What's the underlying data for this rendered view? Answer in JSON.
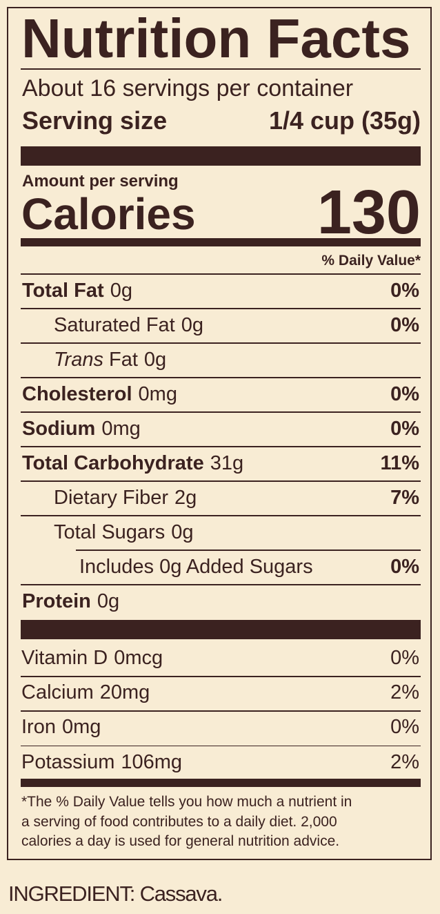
{
  "label": {
    "title": "Nutrition Facts",
    "servings": "About 16 servings per container",
    "serving_size": {
      "label": "Serving size",
      "value": "1/4 cup (35g)"
    },
    "amount_per_serving": "Amount per serving",
    "calories": {
      "label": "Calories",
      "value": "130"
    },
    "daily_value_header": "% Daily Value*",
    "nutrients": [
      {
        "name": "Total Fat",
        "amount": "0g",
        "dv": "0%"
      },
      {
        "name": "Saturated Fat",
        "amount": "0g",
        "dv": "0%"
      },
      {
        "name_italic": "Trans",
        "name": "Fat",
        "amount": "0g"
      },
      {
        "name": "Cholesterol",
        "amount": "0mg",
        "dv": "0%"
      },
      {
        "name": "Sodium",
        "amount": "0mg",
        "dv": "0%"
      },
      {
        "name": "Total Carbohydrate",
        "amount": "31g",
        "dv": "11%"
      },
      {
        "name": "Dietary Fiber",
        "amount": "2g",
        "dv": "7%"
      },
      {
        "name": "Total Sugars",
        "amount": "0g"
      },
      {
        "name": "Includes 0g Added Sugars",
        "dv": "0%"
      },
      {
        "name": "Protein",
        "amount": "0g"
      }
    ],
    "vitamins": [
      {
        "name": "Vitamin D",
        "amount": "0mcg",
        "dv": "0%"
      },
      {
        "name": "Calcium",
        "amount": "20mg",
        "dv": "2%"
      },
      {
        "name": "Iron",
        "amount": "0mg",
        "dv": "0%"
      },
      {
        "name": "Potassium",
        "amount": "106mg",
        "dv": "2%"
      }
    ],
    "footnote": [
      "*The % Daily Value tells you how much a nutrient in",
      "a serving of food contributes to a daily diet. 2,000",
      "calories a day is used for general nutrition advice."
    ]
  },
  "ingredients": "INGREDIENT: Cassava."
}
